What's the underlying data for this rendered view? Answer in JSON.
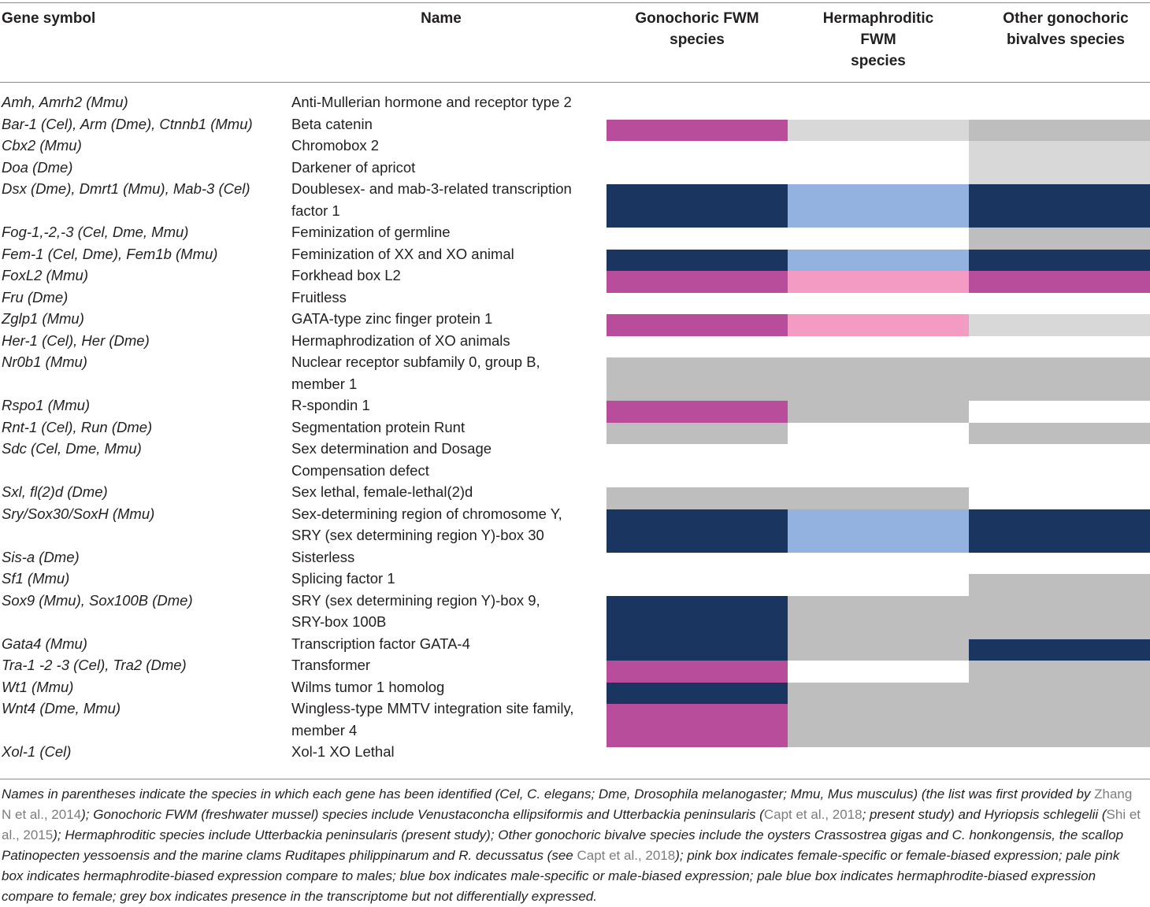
{
  "columns": {
    "gene": "Gene symbol",
    "name": "Name",
    "gonochoric": [
      "Gonochoric FWM",
      "species"
    ],
    "hermaphroditic": [
      "Hermaphroditic",
      "FWM",
      "species"
    ],
    "other": [
      "Other gonochoric",
      "bivalves species"
    ]
  },
  "colors": {
    "pink": "#b84d9b",
    "pale_pink": "#f39bc3",
    "blue": "#1b3561",
    "pale_blue": "#93b2e0",
    "grey": "#bebebe",
    "pale_grey": "#d8d8d8",
    "none": "none"
  },
  "rows": [
    {
      "gene": "Amh, Amrh2 (Mmu)",
      "name": [
        "Anti-Mullerian hormone and receptor type 2"
      ]
    },
    {
      "gene": "Bar-1 (Cel), Arm (Dme), Ctnnb1 (Mmu)",
      "name": [
        "Beta catenin"
      ]
    },
    {
      "gene": "Cbx2 (Mmu)",
      "name": [
        "Chromobox 2"
      ]
    },
    {
      "gene": "Doa (Dme)",
      "name": [
        "Darkener of apricot"
      ]
    },
    {
      "gene": "Dsx (Dme), Dmrt1 (Mmu), Mab-3 (Cel)",
      "name": [
        "Doublesex- and mab-3-related transcription",
        "factor 1"
      ]
    },
    {
      "gene": "Fog-1,-2,-3 (Cel, Dme, Mmu)",
      "name": [
        "Feminization of germline"
      ]
    },
    {
      "gene": "Fem-1 (Cel, Dme), Fem1b (Mmu)",
      "name": [
        "Feminization of XX and XO animal"
      ]
    },
    {
      "gene": "FoxL2 (Mmu)",
      "name": [
        "Forkhead box L2"
      ]
    },
    {
      "gene": "Fru (Dme)",
      "name": [
        "Fruitless"
      ]
    },
    {
      "gene": "Zglp1 (Mmu)",
      "name": [
        "GATA-type zinc finger protein 1"
      ]
    },
    {
      "gene": "Her-1 (Cel), Her (Dme)",
      "name": [
        "Hermaphrodization of XO animals"
      ]
    },
    {
      "gene": "Nr0b1 (Mmu)",
      "name": [
        "Nuclear receptor subfamily 0, group B,",
        "member 1"
      ]
    },
    {
      "gene": "Rspo1 (Mmu)",
      "name": [
        "R-spondin 1"
      ]
    },
    {
      "gene": "Rnt-1 (Cel), Run (Dme)",
      "name": [
        "Segmentation protein Runt"
      ]
    },
    {
      "gene": "Sdc (Cel, Dme, Mmu)",
      "name": [
        "Sex determination and Dosage",
        "Compensation defect"
      ]
    },
    {
      "gene": "Sxl, fl(2)d (Dme)",
      "name": [
        "Sex lethal, female-lethal(2)d"
      ]
    },
    {
      "gene": "Sry/Sox30/SoxH (Mmu)",
      "name": [
        "Sex-determining region of chromosome Y,",
        "SRY (sex determining region Y)-box 30"
      ]
    },
    {
      "gene": "Sis-a (Dme)",
      "name": [
        "Sisterless"
      ]
    },
    {
      "gene": "Sf1 (Mmu)",
      "name": [
        "Splicing factor 1"
      ]
    },
    {
      "gene": "Sox9 (Mmu), Sox100B (Dme)",
      "name": [
        "SRY (sex determining region Y)-box 9,",
        "SRY-box 100B"
      ]
    },
    {
      "gene": "Gata4 (Mmu)",
      "name": [
        "Transcription factor GATA-4"
      ]
    },
    {
      "gene": "Tra-1 -2 -3 (Cel), Tra2 (Dme)",
      "name": [
        "Transformer"
      ]
    },
    {
      "gene": "Wt1 (Mmu)",
      "name": [
        "Wilms tumor 1 homolog"
      ]
    },
    {
      "gene": "Wnt4 (Dme, Mmu)",
      "name": [
        "Wingless-type MMTV integration site family,",
        "member 4"
      ]
    },
    {
      "gene": "Xol-1 (Cel)",
      "name": [
        "Xol-1 XO Lethal"
      ]
    }
  ],
  "boxes": [
    {
      "row": 1,
      "col": 0,
      "color": "pink"
    },
    {
      "row": 1,
      "col": 1,
      "color": "pale_grey"
    },
    {
      "row": 1,
      "col": 2,
      "color": "grey"
    },
    {
      "row": 2,
      "col": 2,
      "color": "pale_grey"
    },
    {
      "row": 3,
      "col": 2,
      "color": "pale_grey"
    },
    {
      "row": 4,
      "col": 0,
      "color": "blue"
    },
    {
      "row": 4,
      "col": 1,
      "color": "pale_blue"
    },
    {
      "row": 4,
      "col": 2,
      "color": "blue"
    },
    {
      "row": 5,
      "col": 2,
      "color": "grey"
    },
    {
      "row": 6,
      "col": 0,
      "color": "blue"
    },
    {
      "row": 6,
      "col": 1,
      "color": "pale_blue"
    },
    {
      "row": 6,
      "col": 2,
      "color": "blue"
    },
    {
      "row": 7,
      "col": 0,
      "color": "pink"
    },
    {
      "row": 7,
      "col": 1,
      "color": "pale_pink"
    },
    {
      "row": 7,
      "col": 2,
      "color": "pink"
    },
    {
      "row": 9,
      "col": 0,
      "color": "pink"
    },
    {
      "row": 9,
      "col": 1,
      "color": "pale_pink"
    },
    {
      "row": 9,
      "col": 2,
      "color": "pale_grey"
    },
    {
      "row": 11,
      "col": 0,
      "color": "grey"
    },
    {
      "row": 11,
      "col": 1,
      "color": "grey"
    },
    {
      "row": 11,
      "col": 2,
      "color": "grey"
    },
    {
      "row": 12,
      "col": 0,
      "color": "pink"
    },
    {
      "row": 12,
      "col": 1,
      "color": "grey"
    },
    {
      "row": 13,
      "col": 0,
      "color": "grey"
    },
    {
      "row": 13,
      "col": 2,
      "color": "grey"
    },
    {
      "row": 15,
      "col": 0,
      "color": "grey"
    },
    {
      "row": 15,
      "col": 1,
      "color": "grey"
    },
    {
      "row": 16,
      "col": 0,
      "color": "blue"
    },
    {
      "row": 16,
      "col": 1,
      "color": "pale_blue"
    },
    {
      "row": 16,
      "col": 2,
      "color": "blue"
    },
    {
      "row": 18,
      "col": 2,
      "color": "grey"
    },
    {
      "row": 19,
      "col": 0,
      "color": "blue"
    },
    {
      "row": 19,
      "col": 1,
      "color": "grey"
    },
    {
      "row": 19,
      "col": 2,
      "color": "grey"
    },
    {
      "row": 20,
      "col": 0,
      "color": "blue"
    },
    {
      "row": 20,
      "col": 1,
      "color": "grey"
    },
    {
      "row": 20,
      "col": 2,
      "color": "blue"
    },
    {
      "row": 21,
      "col": 0,
      "color": "pink"
    },
    {
      "row": 21,
      "col": 2,
      "color": "grey"
    },
    {
      "row": 22,
      "col": 0,
      "color": "blue"
    },
    {
      "row": 22,
      "col": 1,
      "color": "grey"
    },
    {
      "row": 22,
      "col": 2,
      "color": "grey"
    },
    {
      "row": 23,
      "col": 0,
      "color": "pink"
    },
    {
      "row": 23,
      "col": 1,
      "color": "grey"
    },
    {
      "row": 23,
      "col": 2,
      "color": "grey"
    }
  ],
  "footnote": [
    {
      "t": "Names in parentheses indicate the species in which each gene has been identified (Cel, C. elegans; Dme, Drosophila melanogaster; Mmu, Mus musculus) (the list was first provided by "
    },
    {
      "t": "Zhang N et al., 2014",
      "ref": true
    },
    {
      "t": "); Gonochoric FWM (freshwater mussel) species include Venustaconcha ellipsiformis and Utterbackia peninsularis ("
    },
    {
      "t": "Capt et al., 2018",
      "ref": true
    },
    {
      "t": "; present study) and Hyriopsis schlegelii ("
    },
    {
      "t": "Shi et al., 2015",
      "ref": true
    },
    {
      "t": "); Hermaphroditic species include Utterbackia peninsularis (present study); Other gonochoric bivalve species include the oysters Crassostrea gigas and C. honkongensis, the scallop Patinopecten yessoensis and the marine clams Ruditapes philippinarum and R. decussatus (see "
    },
    {
      "t": "Capt et al., 2018",
      "ref": true
    },
    {
      "t": "); pink box indicates female-specific or female-biased expression; pale pink box indicates hermaphrodite-biased expression compare to males; blue box indicates male-specific or male-biased expression; pale blue box indicates hermaphrodite-biased expression compare to female; grey box indicates presence in the transcriptome but not differentially expressed."
    }
  ]
}
